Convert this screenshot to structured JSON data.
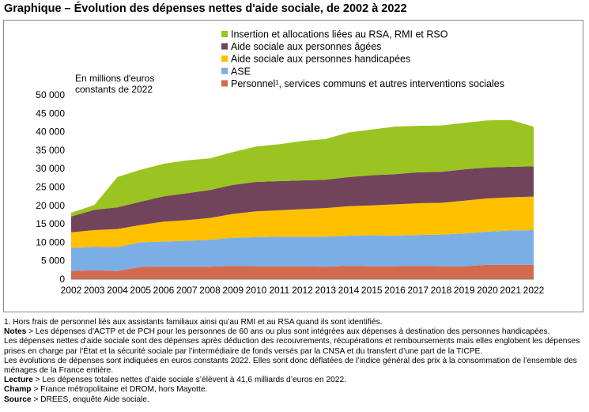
{
  "title": "Graphique – Évolution des dépenses nettes d'aide sociale, de 2002 à 2022",
  "unit_label_line1": "En millions d'euros",
  "unit_label_line2": "constants de 2022",
  "chart_data": {
    "type": "area",
    "stacked": true,
    "x": [
      "2002",
      "2003",
      "2004",
      "2005",
      "2006",
      "2007",
      "2008",
      "2009",
      "2010",
      "2011",
      "2012",
      "2013",
      "2014",
      "2015",
      "2016",
      "2017",
      "2018",
      "2019",
      "2020",
      "2021",
      "2022"
    ],
    "ylim": [
      0,
      50000
    ],
    "yticks": [
      0,
      5000,
      10000,
      15000,
      20000,
      25000,
      30000,
      35000,
      40000,
      45000,
      50000
    ],
    "ytick_labels": [
      "0",
      "5 000",
      "10 000",
      "15 000",
      "20 000",
      "25 000",
      "30 000",
      "35 000",
      "40 000",
      "45 000",
      "50 000"
    ],
    "legend_position": "top",
    "series": [
      {
        "name": "Personnel¹, services communs et autres interventions sociales",
        "color": "#d46a4c",
        "values": [
          2200,
          2400,
          2200,
          3300,
          3400,
          3400,
          3400,
          3600,
          3500,
          3500,
          3500,
          3400,
          3600,
          3500,
          3500,
          3600,
          3500,
          3500,
          3900,
          3900,
          3900
        ]
      },
      {
        "name": "ASE",
        "color": "#7caee6",
        "values": [
          6300,
          6400,
          6500,
          6700,
          6800,
          7000,
          7300,
          7600,
          7900,
          8000,
          8000,
          8100,
          8200,
          8400,
          8300,
          8400,
          8600,
          8900,
          9000,
          9300,
          9400
        ]
      },
      {
        "name": "Aide sociale aux personnes handicapées",
        "color": "#ffc000",
        "values": [
          4200,
          4500,
          4900,
          4700,
          5400,
          5600,
          5900,
          6500,
          7000,
          7200,
          7500,
          7800,
          8000,
          8100,
          8500,
          8600,
          8600,
          8900,
          9000,
          9000,
          9100
        ]
      },
      {
        "name": "Aide sociale aux personnes âgées",
        "color": "#72445c",
        "values": [
          4300,
          5500,
          5900,
          6300,
          6900,
          7300,
          7600,
          7900,
          8000,
          7900,
          7800,
          7700,
          7900,
          8200,
          8200,
          8400,
          8400,
          8500,
          8400,
          8300,
          8200
        ]
      },
      {
        "name": "Insertion et allocations liées au RSA, RMI et RSO",
        "color": "#9ac421",
        "values": [
          1000,
          1300,
          8200,
          8700,
          8800,
          8900,
          8600,
          8900,
          9600,
          10000,
          10700,
          11000,
          12100,
          12400,
          12900,
          12600,
          12600,
          12600,
          12800,
          12700,
          10800
        ]
      }
    ],
    "legend_order": [
      4,
      3,
      2,
      1,
      0
    ]
  },
  "notes": {
    "footnote": "1. Hors frais de personnel liés aux assistants familiaux ainsi qu’au RMI et au RSA quand ils sont identifiés.",
    "notes_label": "Notes",
    "notes_text1": " > Les dépenses d’ACTP et de PCH pour les personnes de 60 ans ou plus sont intégrées aux dépenses à destination des personnes handicapées.",
    "notes_text2": "Les dépenses nettes d’aide sociale sont des dépenses après déduction des recouvrements, récupérations et remboursements mais elles englobent les dépenses prises en charge par l’État et la sécurité sociale par l’intermédiaire de fonds versés par la CNSA et du transfert d’une part de la TICPE.",
    "notes_text3": "Les évolutions de dépenses sont indiquées en euros constants 2022. Elles sont donc déflatées de l’indice général des prix à la consommation de l’ensemble des ménages de la France entière.",
    "lecture_label": "Lecture",
    "lecture_text": " > Les dépenses totales nettes d’aide sociale s’élèvent à 41,6 milliards d’euros en 2022.",
    "champ_label": "Champ",
    "champ_text": " > France métropolitaine et DROM, hors Mayotte.",
    "source_label": "Source",
    "source_text": " > DREES, enquête Aide sociale."
  }
}
